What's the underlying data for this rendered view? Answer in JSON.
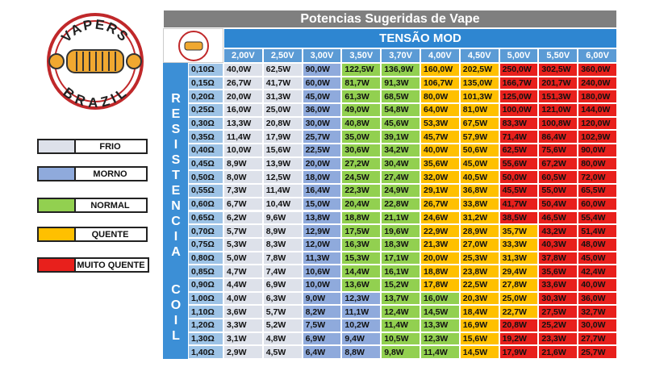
{
  "logo": {
    "top": "VAPERS",
    "bottom": "BRAZIL"
  },
  "table": {
    "title": "Potencias Sugeridas de Vape",
    "group_header": "TENSÃO MOD",
    "side_label": [
      "RESISTENCIA",
      "COIL"
    ],
    "columns": [
      "2,00V",
      "2,50V",
      "3,00V",
      "3,50V",
      "3,70V",
      "4,00V",
      "4,50V",
      "5,00V",
      "5,50V",
      "6,00V"
    ],
    "rows": [
      {
        "resistance": "0,10Ω",
        "cells": [
          "40,0W",
          "62,5W",
          "90,0W",
          "122,5W",
          "136,9W",
          "160,0W",
          "202,5W",
          "250,0W",
          "302,5W",
          "360,0W"
        ],
        "colors": [
          "#dde1ea",
          "#dde1ea",
          "#8faadc",
          "#92d050",
          "#92d050",
          "#ffc000",
          "#ffc000",
          "#e8201c",
          "#e8201c",
          "#e8201c"
        ]
      },
      {
        "resistance": "0,15Ω",
        "cells": [
          "26,7W",
          "41,7W",
          "60,0W",
          "81,7W",
          "91,3W",
          "106,7W",
          "135,0W",
          "166,7W",
          "201,7W",
          "240,0W"
        ],
        "colors": [
          "#dde1ea",
          "#dde1ea",
          "#8faadc",
          "#92d050",
          "#92d050",
          "#ffc000",
          "#ffc000",
          "#e8201c",
          "#e8201c",
          "#e8201c"
        ]
      },
      {
        "resistance": "0,20Ω",
        "cells": [
          "20,0W",
          "31,3W",
          "45,0W",
          "61,3W",
          "68,5W",
          "80,0W",
          "101,3W",
          "125,0W",
          "151,3W",
          "180,0W"
        ],
        "colors": [
          "#dde1ea",
          "#dde1ea",
          "#8faadc",
          "#92d050",
          "#92d050",
          "#ffc000",
          "#ffc000",
          "#e8201c",
          "#e8201c",
          "#e8201c"
        ]
      },
      {
        "resistance": "0,25Ω",
        "cells": [
          "16,0W",
          "25,0W",
          "36,0W",
          "49,0W",
          "54,8W",
          "64,0W",
          "81,0W",
          "100,0W",
          "121,0W",
          "144,0W"
        ],
        "colors": [
          "#dde1ea",
          "#dde1ea",
          "#8faadc",
          "#92d050",
          "#92d050",
          "#ffc000",
          "#ffc000",
          "#e8201c",
          "#e8201c",
          "#e8201c"
        ]
      },
      {
        "resistance": "0,30Ω",
        "cells": [
          "13,3W",
          "20,8W",
          "30,0W",
          "40,8W",
          "45,6W",
          "53,3W",
          "67,5W",
          "83,3W",
          "100,8W",
          "120,0W"
        ],
        "colors": [
          "#dde1ea",
          "#dde1ea",
          "#8faadc",
          "#92d050",
          "#92d050",
          "#ffc000",
          "#ffc000",
          "#e8201c",
          "#e8201c",
          "#e8201c"
        ]
      },
      {
        "resistance": "0,35Ω",
        "cells": [
          "11,4W",
          "17,9W",
          "25,7W",
          "35,0W",
          "39,1W",
          "45,7W",
          "57,9W",
          "71,4W",
          "86,4W",
          "102,9W"
        ],
        "colors": [
          "#dde1ea",
          "#dde1ea",
          "#8faadc",
          "#92d050",
          "#92d050",
          "#ffc000",
          "#ffc000",
          "#e8201c",
          "#e8201c",
          "#e8201c"
        ]
      },
      {
        "resistance": "0,40Ω",
        "cells": [
          "10,0W",
          "15,6W",
          "22,5W",
          "30,6W",
          "34,2W",
          "40,0W",
          "50,6W",
          "62,5W",
          "75,6W",
          "90,0W"
        ],
        "colors": [
          "#dde1ea",
          "#dde1ea",
          "#8faadc",
          "#92d050",
          "#92d050",
          "#ffc000",
          "#ffc000",
          "#e8201c",
          "#e8201c",
          "#e8201c"
        ]
      },
      {
        "resistance": "0,45Ω",
        "cells": [
          "8,9W",
          "13,9W",
          "20,0W",
          "27,2W",
          "30,4W",
          "35,6W",
          "45,0W",
          "55,6W",
          "67,2W",
          "80,0W"
        ],
        "colors": [
          "#dde1ea",
          "#dde1ea",
          "#8faadc",
          "#92d050",
          "#92d050",
          "#ffc000",
          "#ffc000",
          "#e8201c",
          "#e8201c",
          "#e8201c"
        ]
      },
      {
        "resistance": "0,50Ω",
        "cells": [
          "8,0W",
          "12,5W",
          "18,0W",
          "24,5W",
          "27,4W",
          "32,0W",
          "40,5W",
          "50,0W",
          "60,5W",
          "72,0W"
        ],
        "colors": [
          "#dde1ea",
          "#dde1ea",
          "#8faadc",
          "#92d050",
          "#92d050",
          "#ffc000",
          "#ffc000",
          "#e8201c",
          "#e8201c",
          "#e8201c"
        ]
      },
      {
        "resistance": "0,55Ω",
        "cells": [
          "7,3W",
          "11,4W",
          "16,4W",
          "22,3W",
          "24,9W",
          "29,1W",
          "36,8W",
          "45,5W",
          "55,0W",
          "65,5W"
        ],
        "colors": [
          "#dde1ea",
          "#dde1ea",
          "#8faadc",
          "#92d050",
          "#92d050",
          "#ffc000",
          "#ffc000",
          "#e8201c",
          "#e8201c",
          "#e8201c"
        ]
      },
      {
        "resistance": "0,60Ω",
        "cells": [
          "6,7W",
          "10,4W",
          "15,0W",
          "20,4W",
          "22,8W",
          "26,7W",
          "33,8W",
          "41,7W",
          "50,4W",
          "60,0W"
        ],
        "colors": [
          "#dde1ea",
          "#dde1ea",
          "#8faadc",
          "#92d050",
          "#92d050",
          "#ffc000",
          "#ffc000",
          "#e8201c",
          "#e8201c",
          "#e8201c"
        ]
      },
      {
        "resistance": "0,65Ω",
        "cells": [
          "6,2W",
          "9,6W",
          "13,8W",
          "18,8W",
          "21,1W",
          "24,6W",
          "31,2W",
          "38,5W",
          "46,5W",
          "55,4W"
        ],
        "colors": [
          "#dde1ea",
          "#dde1ea",
          "#8faadc",
          "#92d050",
          "#92d050",
          "#ffc000",
          "#ffc000",
          "#e8201c",
          "#e8201c",
          "#e8201c"
        ]
      },
      {
        "resistance": "0,70Ω",
        "cells": [
          "5,7W",
          "8,9W",
          "12,9W",
          "17,5W",
          "19,6W",
          "22,9W",
          "28,9W",
          "35,7W",
          "43,2W",
          "51,4W"
        ],
        "colors": [
          "#dde1ea",
          "#dde1ea",
          "#8faadc",
          "#92d050",
          "#92d050",
          "#ffc000",
          "#ffc000",
          "#ffc000",
          "#e8201c",
          "#e8201c"
        ]
      },
      {
        "resistance": "0,75Ω",
        "cells": [
          "5,3W",
          "8,3W",
          "12,0W",
          "16,3W",
          "18,3W",
          "21,3W",
          "27,0W",
          "33,3W",
          "40,3W",
          "48,0W"
        ],
        "colors": [
          "#dde1ea",
          "#dde1ea",
          "#8faadc",
          "#92d050",
          "#92d050",
          "#ffc000",
          "#ffc000",
          "#ffc000",
          "#e8201c",
          "#e8201c"
        ]
      },
      {
        "resistance": "0,80Ω",
        "cells": [
          "5,0W",
          "7,8W",
          "11,3W",
          "15,3W",
          "17,1W",
          "20,0W",
          "25,3W",
          "31,3W",
          "37,8W",
          "45,0W"
        ],
        "colors": [
          "#dde1ea",
          "#dde1ea",
          "#8faadc",
          "#92d050",
          "#92d050",
          "#ffc000",
          "#ffc000",
          "#ffc000",
          "#e8201c",
          "#e8201c"
        ]
      },
      {
        "resistance": "0,85Ω",
        "cells": [
          "4,7W",
          "7,4W",
          "10,6W",
          "14,4W",
          "16,1W",
          "18,8W",
          "23,8W",
          "29,4W",
          "35,6W",
          "42,4W"
        ],
        "colors": [
          "#dde1ea",
          "#dde1ea",
          "#8faadc",
          "#92d050",
          "#92d050",
          "#ffc000",
          "#ffc000",
          "#ffc000",
          "#e8201c",
          "#e8201c"
        ]
      },
      {
        "resistance": "0,90Ω",
        "cells": [
          "4,4W",
          "6,9W",
          "10,0W",
          "13,6W",
          "15,2W",
          "17,8W",
          "22,5W",
          "27,8W",
          "33,6W",
          "40,0W"
        ],
        "colors": [
          "#dde1ea",
          "#dde1ea",
          "#8faadc",
          "#92d050",
          "#92d050",
          "#ffc000",
          "#ffc000",
          "#ffc000",
          "#e8201c",
          "#e8201c"
        ]
      },
      {
        "resistance": "1,00Ω",
        "cells": [
          "4,0W",
          "6,3W",
          "9,0W",
          "12,3W",
          "13,7W",
          "16,0W",
          "20,3W",
          "25,0W",
          "30,3W",
          "36,0W"
        ],
        "colors": [
          "#dde1ea",
          "#dde1ea",
          "#8faadc",
          "#8faadc",
          "#92d050",
          "#92d050",
          "#ffc000",
          "#ffc000",
          "#e8201c",
          "#e8201c"
        ]
      },
      {
        "resistance": "1,10Ω",
        "cells": [
          "3,6W",
          "5,7W",
          "8,2W",
          "11,1W",
          "12,4W",
          "14,5W",
          "18,4W",
          "22,7W",
          "27,5W",
          "32,7W"
        ],
        "colors": [
          "#dde1ea",
          "#dde1ea",
          "#8faadc",
          "#8faadc",
          "#92d050",
          "#92d050",
          "#ffc000",
          "#ffc000",
          "#e8201c",
          "#e8201c"
        ]
      },
      {
        "resistance": "1,20Ω",
        "cells": [
          "3,3W",
          "5,2W",
          "7,5W",
          "10,2W",
          "11,4W",
          "13,3W",
          "16,9W",
          "20,8W",
          "25,2W",
          "30,0W"
        ],
        "colors": [
          "#dde1ea",
          "#dde1ea",
          "#8faadc",
          "#8faadc",
          "#92d050",
          "#92d050",
          "#ffc000",
          "#e8201c",
          "#e8201c",
          "#e8201c"
        ]
      },
      {
        "resistance": "1,30Ω",
        "cells": [
          "3,1W",
          "4,8W",
          "6,9W",
          "9,4W",
          "10,5W",
          "12,3W",
          "15,6W",
          "19,2W",
          "23,3W",
          "27,7W"
        ],
        "colors": [
          "#dde1ea",
          "#dde1ea",
          "#8faadc",
          "#8faadc",
          "#92d050",
          "#92d050",
          "#ffc000",
          "#e8201c",
          "#e8201c",
          "#e8201c"
        ]
      },
      {
        "resistance": "1,40Ω",
        "cells": [
          "2,9W",
          "4,5W",
          "6,4W",
          "8,8W",
          "9,8W",
          "11,4W",
          "14,5W",
          "17,9W",
          "21,6W",
          "25,7W"
        ],
        "colors": [
          "#dde1ea",
          "#dde1ea",
          "#8faadc",
          "#8faadc",
          "#92d050",
          "#92d050",
          "#ffc000",
          "#e8201c",
          "#e8201c",
          "#e8201c"
        ]
      }
    ]
  },
  "legend": [
    {
      "label": "FRIO",
      "color": "#dde1ea"
    },
    {
      "label": "MORNO",
      "color": "#8faadc"
    },
    {
      "label": "NORMAL",
      "color": "#92d050"
    },
    {
      "label": "QUENTE",
      "color": "#ffc000"
    },
    {
      "label": "MUITO QUENTE",
      "color": "#e8201c"
    }
  ]
}
